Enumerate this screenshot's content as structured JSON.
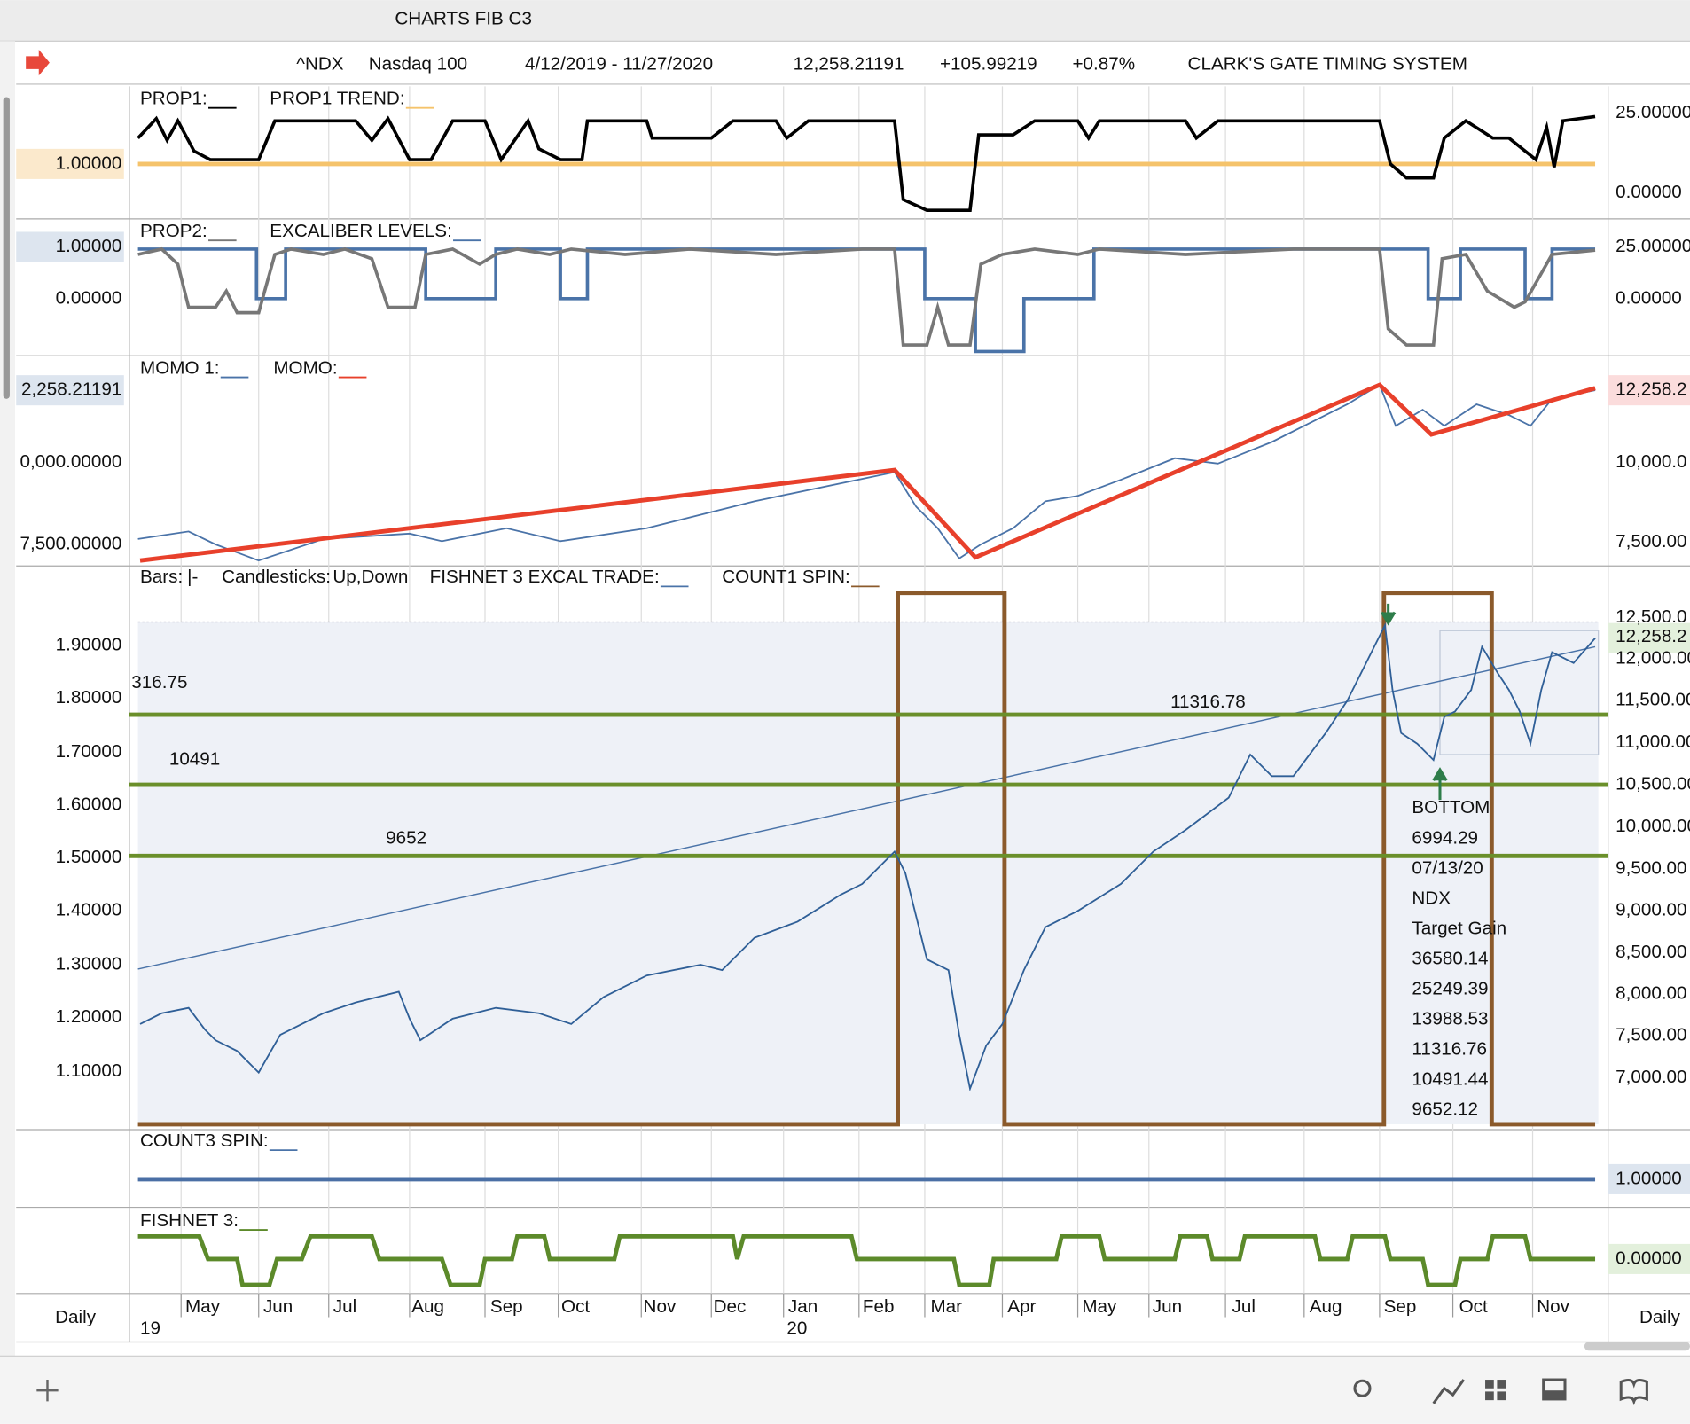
{
  "window": {
    "title": "CHARTS FIB C3"
  },
  "header": {
    "symbol": "^NDX",
    "name": "Nasdaq 100",
    "range": "4/12/2019 - 11/27/2020",
    "last": "12,258.21191",
    "change": "+105.99219",
    "change_pct": "+0.87%",
    "system": "CLARK'S GATE TIMING SYSTEM"
  },
  "panels": [
    {
      "legend": [
        "PROP1:",
        "PROP1 TREND:"
      ],
      "left_labels": [
        "1.00000"
      ],
      "right_labels": [
        "25.00000",
        "0.00000"
      ]
    },
    {
      "legend": [
        "PROP2:",
        "EXCALIBER LEVELS:"
      ],
      "left_labels": [
        "1.00000",
        "0.00000"
      ],
      "right_labels": [
        "25.00000",
        "0.00000"
      ]
    },
    {
      "legend": [
        "MOMO 1:",
        "MOMO:"
      ],
      "left_labels": [
        "2,258.21191",
        "0,000.00000",
        "7,500.00000"
      ],
      "right_labels": [
        "12,258.2",
        "10,000.0",
        "7,500.00"
      ]
    },
    {
      "legend": [
        "Bars:",
        "|-",
        "Candlesticks:",
        "Up",
        ",",
        "Down",
        "FISHNET 3 EXCAL TRADE:",
        "COUNT1 SPIN:"
      ],
      "left_labels": [
        "1.90000",
        "1.80000",
        "1.70000",
        "1.60000",
        "1.50000",
        "1.40000",
        "1.30000",
        "1.20000",
        "1.10000"
      ],
      "right_labels": [
        "12,500.0",
        "12,258.2",
        "12,000.00",
        "11,500.00",
        "11,000.00",
        "10,500.00",
        "10,000.00",
        "9,500.00",
        "9,000.00",
        "8,500.00",
        "8,000.00",
        "7,500.00",
        "7,000.00"
      ],
      "annotations": [
        "316.75",
        "10491",
        "9652",
        "11316.78"
      ],
      "note": [
        "BOTTOM",
        "6994.29",
        "07/13/20",
        "NDX",
        "Target Gain",
        "36580.14",
        "25249.39",
        "13988.53",
        "11316.76",
        "10491.44",
        "9652.12"
      ]
    },
    {
      "legend": [
        "COUNT3 SPIN:"
      ],
      "right_labels": [
        "1.00000"
      ]
    },
    {
      "legend": [
        "FISHNET 3:"
      ],
      "right_labels": [
        "0.00000"
      ]
    }
  ],
  "x_axis": {
    "months": [
      "May",
      "Jun",
      "Jul",
      "Aug",
      "Sep",
      "Oct",
      "Nov",
      "Dec",
      "Jan",
      "Feb",
      "Mar",
      "Apr",
      "May",
      "Jun",
      "Jul",
      "Aug",
      "Sep",
      "Oct",
      "Nov"
    ],
    "years": [
      "19",
      "20"
    ],
    "interval": "Daily"
  }
}
